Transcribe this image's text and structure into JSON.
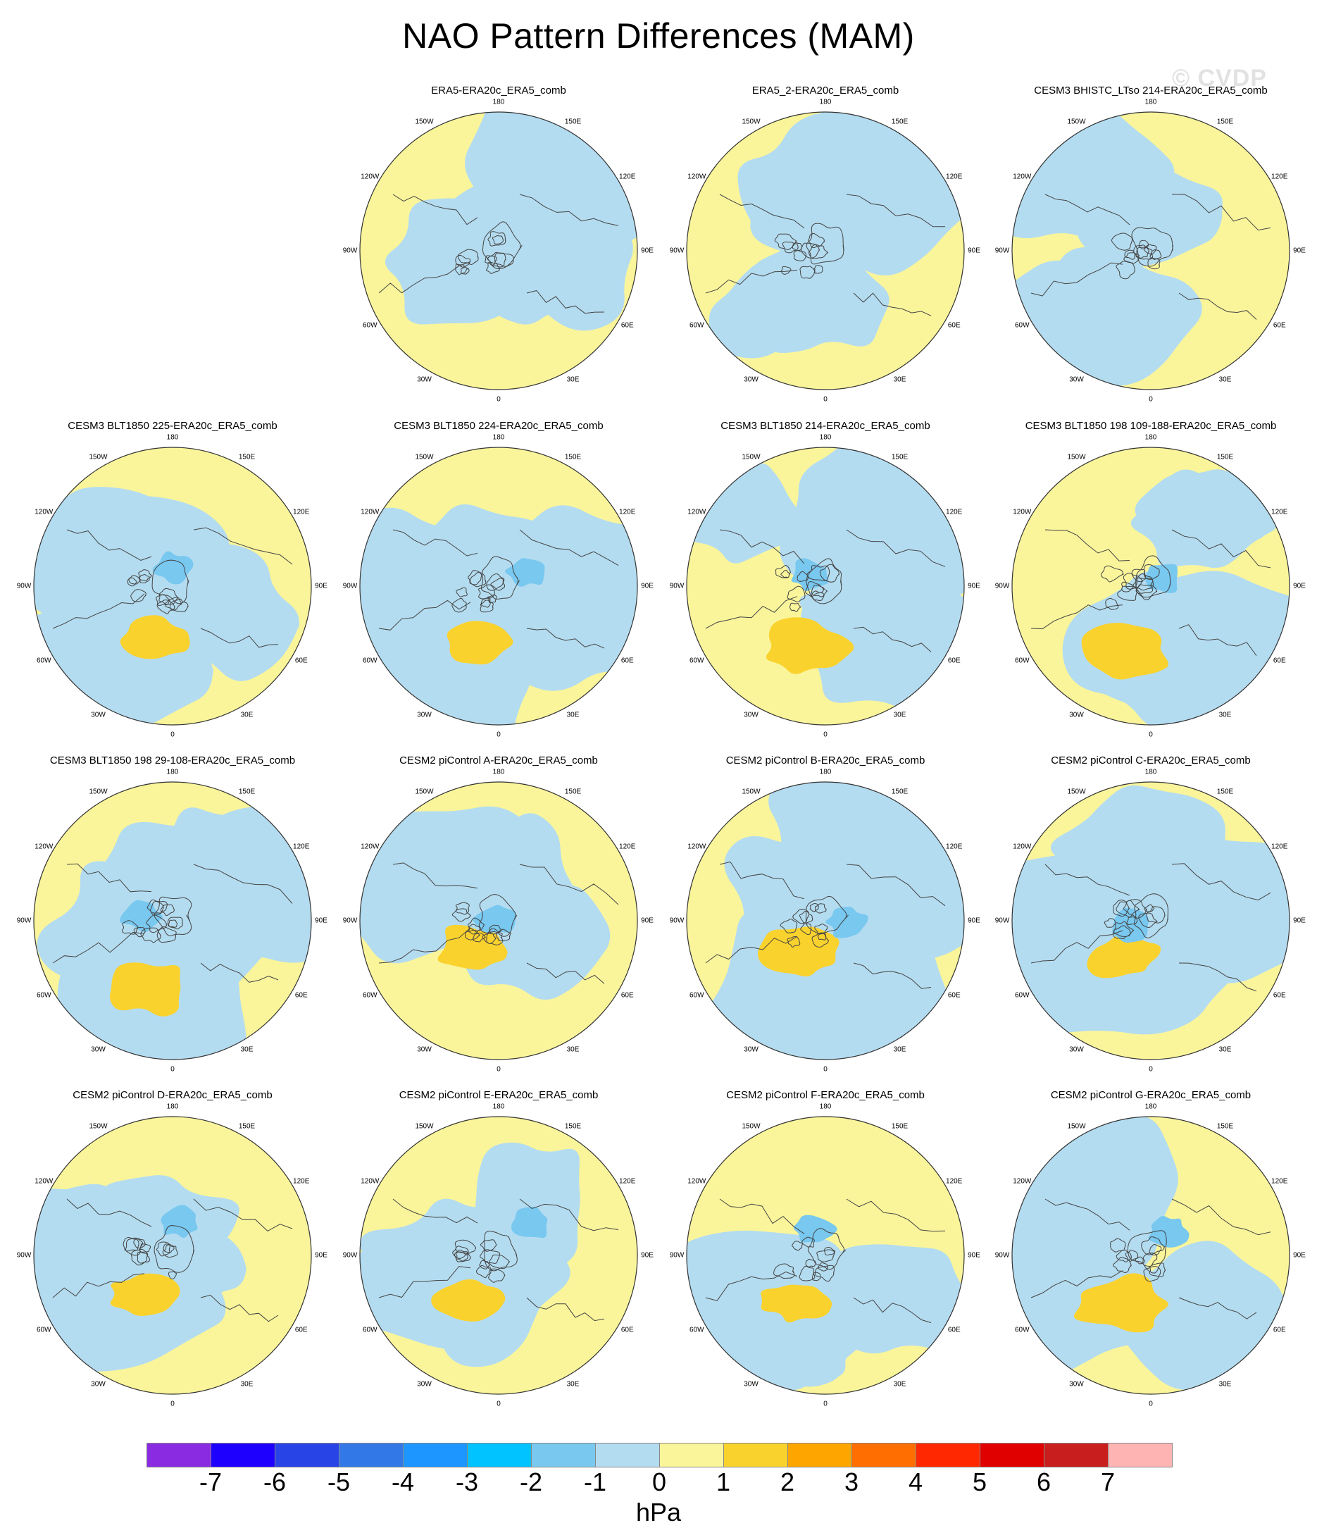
{
  "title": "NAO Pattern Differences (MAM)",
  "watermark": "© CVDP",
  "colors": {
    "light_blue": "#b4dcf0",
    "blue_mid": "#78c8f0",
    "yellow": "#faf59b",
    "orange_yellow": "#fad22d",
    "coastline": "#444444",
    "border": "#333333"
  },
  "longitude_labels": [
    "180",
    "150E",
    "120E",
    "90E",
    "60E",
    "30E",
    "0",
    "30W",
    "60W",
    "90W",
    "120W",
    "150W"
  ],
  "panels": [
    {
      "title": "",
      "empty": true
    },
    {
      "title": "ERA5-ERA20c_ERA5_comb"
    },
    {
      "title": "ERA5_2-ERA20c_ERA5_comb"
    },
    {
      "title": "CESM3 BHISTC_LTso 214-ERA20c_ERA5_comb"
    },
    {
      "title": "CESM3 BLT1850 225-ERA20c_ERA5_comb"
    },
    {
      "title": "CESM3 BLT1850 224-ERA20c_ERA5_comb"
    },
    {
      "title": "CESM3 BLT1850 214-ERA20c_ERA5_comb"
    },
    {
      "title": "CESM3 BLT1850 198 109-188-ERA20c_ERA5_comb"
    },
    {
      "title": "CESM3 BLT1850 198 29-108-ERA20c_ERA5_comb"
    },
    {
      "title": "CESM2 piControl A-ERA20c_ERA5_comb"
    },
    {
      "title": "CESM2 piControl B-ERA20c_ERA5_comb"
    },
    {
      "title": "CESM2 piControl C-ERA20c_ERA5_comb"
    },
    {
      "title": "CESM2 piControl D-ERA20c_ERA5_comb"
    },
    {
      "title": "CESM2 piControl E-ERA20c_ERA5_comb"
    },
    {
      "title": "CESM2 piControl F-ERA20c_ERA5_comb"
    },
    {
      "title": "CESM2 piControl G-ERA20c_ERA5_comb"
    }
  ],
  "colorbar": {
    "units": "hPa",
    "tick_labels": [
      "-7",
      "-6",
      "-5",
      "-4",
      "-3",
      "-2",
      "-1",
      "0",
      "1",
      "2",
      "3",
      "4",
      "5",
      "6",
      "7"
    ],
    "colors": [
      "#8a2be2",
      "#1e00ff",
      "#2843e6",
      "#3278e6",
      "#1e96ff",
      "#00c3ff",
      "#78c8f0",
      "#b4dcf0",
      "#faf59b",
      "#fad22d",
      "#ffa500",
      "#ff6e00",
      "#ff2800",
      "#e10000",
      "#c81e1e",
      "#ffb4b4"
    ]
  }
}
